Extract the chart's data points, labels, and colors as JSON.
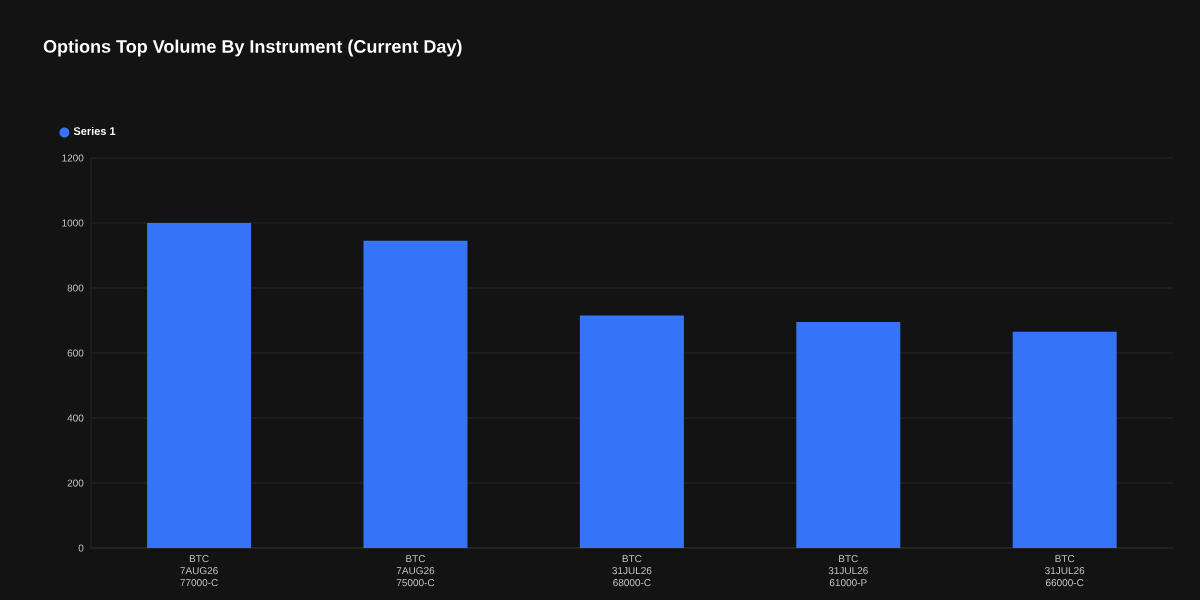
{
  "chart_data": {
    "type": "bar",
    "title": "Options Top Volume By Instrument (Current Day)",
    "categories": [
      "BTC 7AUG26 77000-C",
      "BTC 7AUG26 75000-C",
      "BTC 31JUL26 68000-C",
      "BTC 31JUL26 61000-P",
      "BTC 31JUL26 66000-C"
    ],
    "series": [
      {
        "name": "Series 1",
        "color": "#3574f6",
        "values": [
          1000,
          945,
          715,
          695,
          665
        ]
      }
    ],
    "ylim": [
      0,
      1200
    ],
    "yticks": [
      0,
      200,
      400,
      600,
      800,
      1000,
      1200
    ],
    "grid": "y",
    "legend": "top left"
  }
}
